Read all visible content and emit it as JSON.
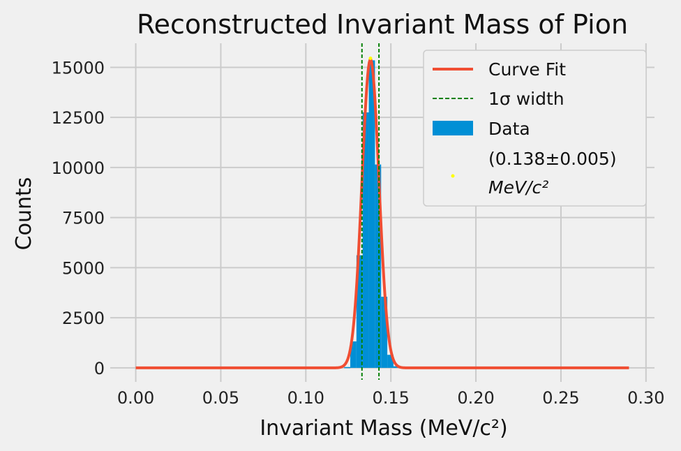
{
  "colors": {
    "background": "#f0f0f0",
    "grid": "#cbcbcb",
    "fit": "#f04e33",
    "bars": "#008fd5",
    "sigma": "#008000",
    "peak": "#ffff00"
  },
  "chart_data": {
    "type": "bar",
    "title": "Reconstructed Invariant Mass of Pion",
    "xlabel": "Invariant Mass (MeV/c²)",
    "ylabel": "Counts",
    "xlim": [
      -0.015,
      0.305
    ],
    "ylim": [
      -700,
      16200
    ],
    "xticks": [
      0.0,
      0.05,
      0.1,
      0.15,
      0.2,
      0.25,
      0.3
    ],
    "xtick_labels": [
      "0.00",
      "0.05",
      "0.10",
      "0.15",
      "0.20",
      "0.25",
      "0.30"
    ],
    "yticks": [
      0,
      2500,
      5000,
      7500,
      10000,
      12500,
      15000
    ],
    "ytick_labels": [
      "0",
      "2500",
      "5000",
      "7500",
      "10000",
      "12500",
      "15000"
    ],
    "grid": true,
    "legend_position": "top-right",
    "histogram": {
      "name": "Data",
      "bin_width": 0.00363,
      "bins": [
        {
          "x0": 0.1225,
          "count": 40
        },
        {
          "x0": 0.12613,
          "count": 1320
        },
        {
          "x0": 0.12976,
          "count": 5620
        },
        {
          "x0": 0.13339,
          "count": 12750
        },
        {
          "x0": 0.13702,
          "count": 15350
        },
        {
          "x0": 0.14065,
          "count": 10150
        },
        {
          "x0": 0.14428,
          "count": 3550
        },
        {
          "x0": 0.14791,
          "count": 650
        },
        {
          "x0": 0.15154,
          "count": 80
        },
        {
          "x0": 0.2385,
          "count": -30
        },
        {
          "x0": 0.2665,
          "count": -50
        },
        {
          "x0": 0.2705,
          "count": -50
        },
        {
          "x0": 0.2745,
          "count": -50
        },
        {
          "x0": 0.2825,
          "count": -40
        }
      ]
    },
    "fit": {
      "name": "Curve Fit",
      "model": "gaussian",
      "amplitude": 15400,
      "mean": 0.138,
      "sigma": 0.005,
      "x_range": [
        0.0,
        0.29
      ]
    },
    "sigma_lines": {
      "name": "1σ width",
      "x": [
        0.133,
        0.143
      ]
    },
    "peak_marker": {
      "x": 0.138,
      "y": 15450,
      "label_line1": "(0.138±0.005)",
      "label_line2": "MeV/c²"
    }
  }
}
